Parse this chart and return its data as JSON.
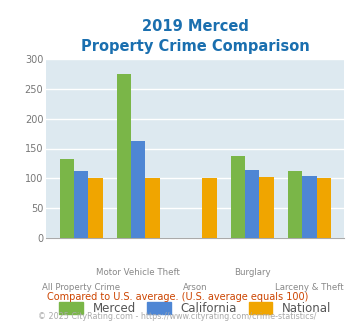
{
  "title_line1": "2019 Merced",
  "title_line2": "Property Crime Comparison",
  "title_color": "#1a6faf",
  "categories": [
    "All Property Crime",
    "Motor Vehicle Theft",
    "Arson",
    "Burglary",
    "Larceny & Theft"
  ],
  "merced": [
    132,
    275,
    0,
    138,
    112
  ],
  "california": [
    112,
    163,
    0,
    114,
    103
  ],
  "national": [
    101,
    101,
    101,
    102,
    101
  ],
  "merced_color": "#7ab648",
  "california_color": "#4e86d4",
  "national_color": "#f0a500",
  "ylim": [
    0,
    300
  ],
  "yticks": [
    0,
    50,
    100,
    150,
    200,
    250,
    300
  ],
  "bg_color": "#dde9f0",
  "grid_color": "#ffffff",
  "legend_labels": [
    "Merced",
    "California",
    "National"
  ],
  "footnote1": "Compared to U.S. average. (U.S. average equals 100)",
  "footnote2": "© 2025 CityRating.com - https://www.cityrating.com/crime-statistics/",
  "footnote1_color": "#cc4400",
  "footnote2_color": "#aaaaaa",
  "label_top": [
    "",
    "Motor Vehicle Theft",
    "",
    "Burglary",
    ""
  ],
  "label_bottom": [
    "All Property Crime",
    "",
    "Arson",
    "",
    "Larceny & Theft"
  ]
}
